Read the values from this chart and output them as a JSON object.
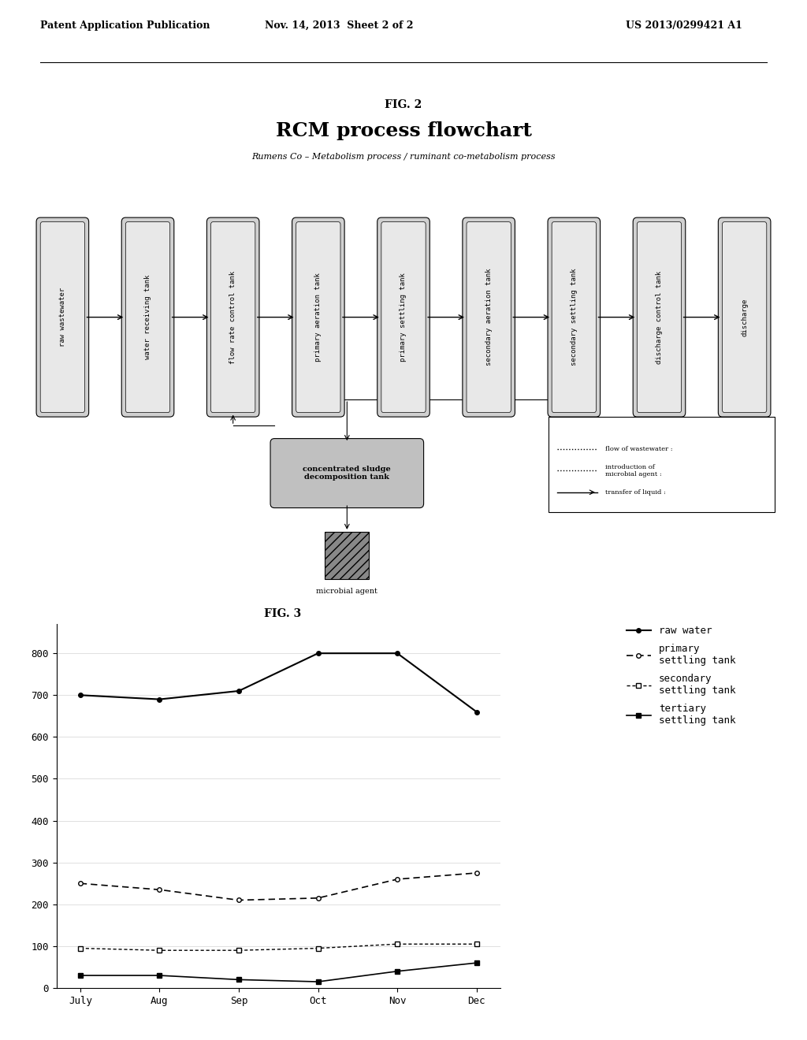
{
  "header_left": "Patent Application Publication",
  "header_mid": "Nov. 14, 2013  Sheet 2 of 2",
  "header_right": "US 2013/0299421 A1",
  "fig2_label": "FIG. 2",
  "fig2_title": "RCM process flowchart",
  "fig2_subtitle": "Rumens Co – Metabolism process / ruminant co-metabolism process",
  "flowchart_boxes": [
    "raw wastewater",
    "water receiving tank",
    "flow rate control tank",
    "primary aeration tank",
    "primary settling tank",
    "secondary aeration tank",
    "secondary settling tank",
    "discharge control tank",
    "discharge"
  ],
  "sludge_box": "concentrated sludge\ndecomposition tank",
  "microbial_label": "microbial agent",
  "legend_items": [
    "flow of wastewater :",
    "introduction of\nmicrobial agent :",
    "transfer of liquid :"
  ],
  "fig3_label": "FIG. 3",
  "months": [
    "July",
    "Aug",
    "Sep",
    "Oct",
    "Nov",
    "Dec"
  ],
  "raw_water": [
    700,
    690,
    710,
    800,
    800,
    660
  ],
  "primary_settling": [
    250,
    235,
    210,
    215,
    260,
    275
  ],
  "secondary_settling": [
    95,
    90,
    90,
    95,
    105,
    105
  ],
  "tertiary_settling": [
    30,
    30,
    20,
    15,
    40,
    60
  ],
  "legend_labels": [
    "raw water",
    "primary\nsettling tank",
    "secondary\nsettling tank",
    "tertiary\nsettling tank"
  ],
  "yticks": [
    0,
    100,
    200,
    300,
    400,
    500,
    600,
    700,
    800
  ],
  "bg_color": "#ffffff",
  "line_color": "#000000"
}
